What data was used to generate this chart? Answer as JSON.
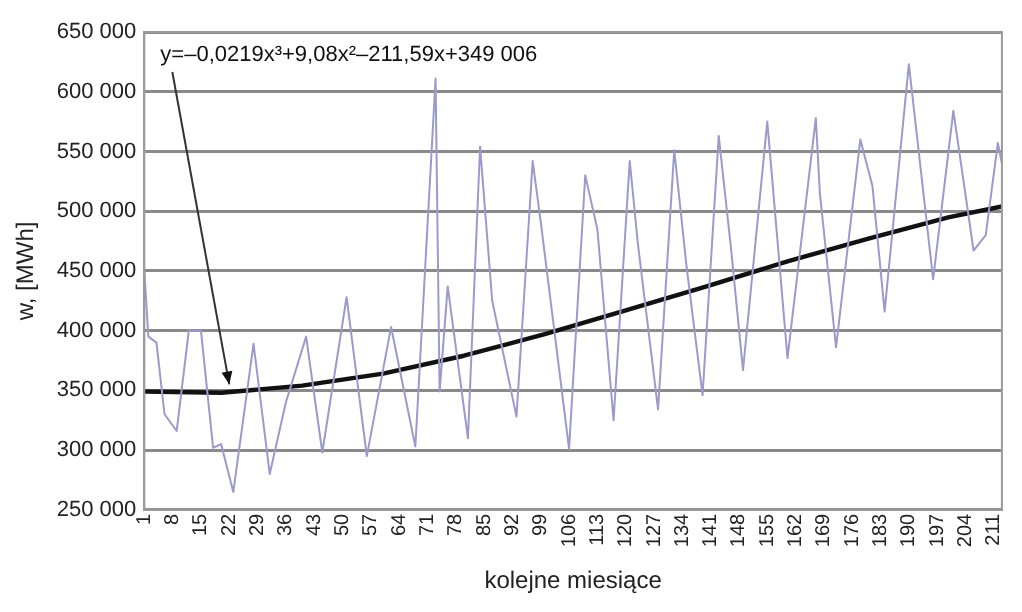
{
  "chart_data": {
    "type": "line",
    "xlabel": "kolejne miesiące",
    "ylabel": "w, [MWh]",
    "xlim": [
      1,
      213
    ],
    "xticks": [
      1,
      8,
      15,
      22,
      29,
      36,
      43,
      50,
      57,
      64,
      71,
      78,
      85,
      92,
      99,
      106,
      113,
      120,
      127,
      134,
      141,
      148,
      155,
      162,
      169,
      176,
      183,
      190,
      197,
      204,
      211
    ],
    "ylim": [
      250000,
      650000
    ],
    "yticks": [
      {
        "value": 250000,
        "label": "250 000"
      },
      {
        "value": 300000,
        "label": "300 000"
      },
      {
        "value": 350000,
        "label": "350 000"
      },
      {
        "value": 400000,
        "label": "400 000"
      },
      {
        "value": 450000,
        "label": "450 000"
      },
      {
        "value": 500000,
        "label": "500 000"
      },
      {
        "value": 550000,
        "label": "550 000"
      },
      {
        "value": 600000,
        "label": "600 000"
      },
      {
        "value": 650000,
        "label": "650 000"
      }
    ],
    "grid": "y",
    "legend": false,
    "marker": "none",
    "line_style": "solid",
    "series": [
      {
        "color": "#9a9acb",
        "x": [
          1,
          2,
          4,
          6,
          9,
          12,
          15,
          18,
          20,
          23,
          28,
          32,
          36,
          41,
          45,
          51,
          56,
          62,
          68,
          73,
          74,
          76,
          81,
          84,
          87,
          93,
          97,
          99,
          106,
          110,
          113,
          117,
          121,
          123,
          128,
          132,
          135,
          139,
          143,
          146,
          149,
          155,
          160,
          167,
          168,
          172,
          178,
          181,
          184,
          190,
          192,
          196,
          201,
          206,
          209,
          212,
          213
        ],
        "values": [
          450000,
          395000,
          390000,
          330000,
          316000,
          400000,
          400000,
          302000,
          305000,
          265000,
          389000,
          280000,
          340000,
          395000,
          298000,
          428000,
          295000,
          403000,
          303000,
          611000,
          349000,
          437000,
          310000,
          554000,
          425000,
          328000,
          542000,
          491000,
          301000,
          530000,
          485000,
          325000,
          542000,
          473000,
          334000,
          551000,
          455000,
          346000,
          563000,
          470000,
          367000,
          575000,
          377000,
          578000,
          515000,
          386000,
          560000,
          521000,
          416000,
          623000,
          563000,
          443000,
          584000,
          467000,
          480000,
          557000,
          540000
        ]
      },
      {
        "color": "#111111",
        "x": [
          1,
          20,
          40,
          60,
          80,
          100,
          120,
          140,
          160,
          180,
          200,
          213
        ],
        "values": [
          349000,
          348000,
          354000,
          364000,
          379000,
          397000,
          417000,
          437000,
          458000,
          477000,
          495000,
          504000
        ]
      }
    ],
    "annotations": [
      {
        "text": "y=–0,0219x³+9,08x²–211,59x+349 006",
        "x": 22,
        "y": 350000
      }
    ]
  }
}
